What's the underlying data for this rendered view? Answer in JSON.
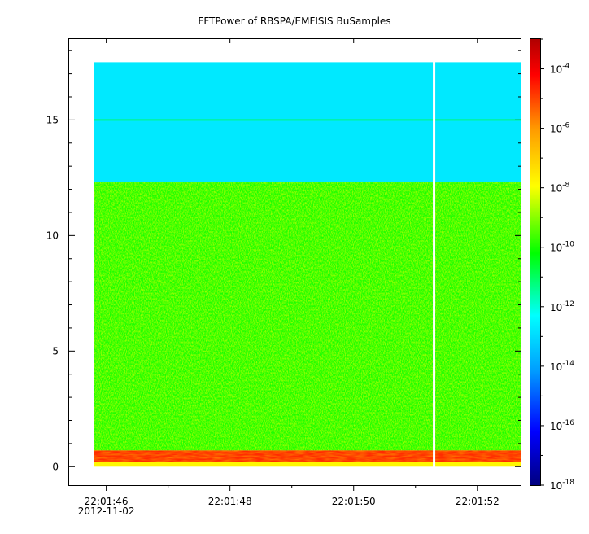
{
  "chart_data": {
    "type": "heatmap",
    "title": "FFTPower of RBSPA/EMFISIS  BuSamples",
    "xlabel": "",
    "ylabel": "",
    "x_axis": {
      "ticks": [
        "22:01:46",
        "22:01:48",
        "22:01:50",
        "22:01:52"
      ],
      "date_label": "2012-11-02",
      "range_seconds": [
        "22:01:45.4",
        "22:01:52.7"
      ]
    },
    "y_axis": {
      "ticks": [
        "0",
        "5",
        "10",
        "15"
      ],
      "range": [
        -0.8,
        18.5
      ],
      "data_range": [
        0,
        17.5
      ]
    },
    "data_time_range": [
      "22:01:45.8",
      "22:01:52.7"
    ],
    "gap_time": "22:01:51.3",
    "colorbar": {
      "scale": "log",
      "range": [
        1e-18,
        0.001
      ],
      "colormap": [
        "#00007f",
        "#0000ff",
        "#00a0ff",
        "#00ffff",
        "#00ff00",
        "#ffff00",
        "#ff8000",
        "#ff0000",
        "#7f0000"
      ],
      "tick_labels": [
        {
          "base": "10",
          "exp": "-4"
        },
        {
          "base": "10",
          "exp": "-6"
        },
        {
          "base": "10",
          "exp": "-8"
        },
        {
          "base": "10",
          "exp": "-10"
        },
        {
          "base": "10",
          "exp": "-12"
        },
        {
          "base": "10",
          "exp": "-14"
        },
        {
          "base": "10",
          "exp": "-16"
        },
        {
          "base": "10",
          "exp": "-18"
        }
      ]
    },
    "bands": [
      {
        "y_from": 12.3,
        "y_to": 17.5,
        "log_power": -12.8
      },
      {
        "y_from": 0.7,
        "y_to": 12.3,
        "log_power": -10.3
      },
      {
        "y_from": 0.2,
        "y_to": 0.7,
        "log_power": -5.5
      },
      {
        "y_from": 0.0,
        "y_to": 0.2,
        "log_power": -8.5
      }
    ],
    "line_feature": {
      "y": 15.0,
      "log_power": -11.0
    },
    "grid": false,
    "legend": "none"
  }
}
